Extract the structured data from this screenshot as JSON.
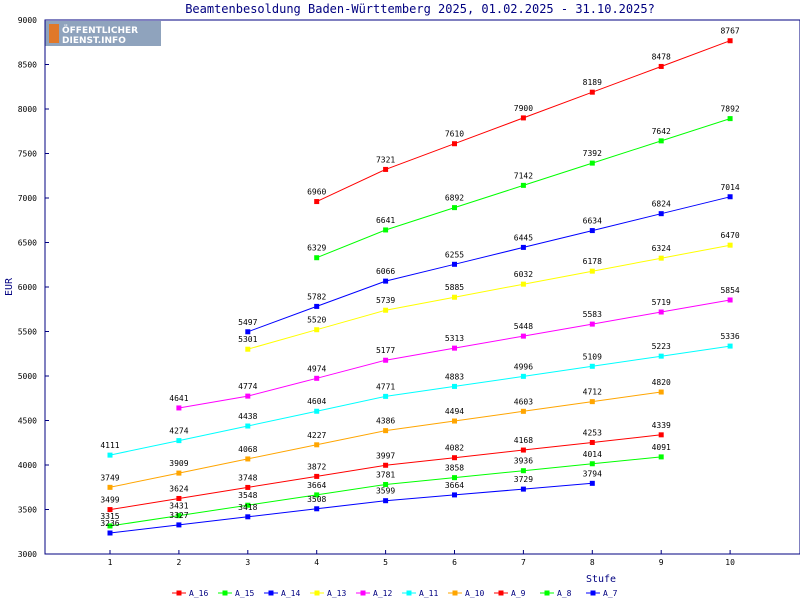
{
  "logo": {
    "line1": "ÖFFENTLICHER",
    "line2": "DIENST.INFO"
  },
  "chart_data": {
    "type": "line",
    "title": "Beamtenbesoldung Baden-Württemberg 2025, 01.02.2025 - 31.10.2025?",
    "xlabel": "Stufe",
    "ylabel": "EUR",
    "ylim": [
      3000,
      9000
    ],
    "yticks": [
      3000,
      3500,
      4000,
      4500,
      5000,
      5500,
      6000,
      6500,
      7000,
      7500,
      8000,
      8500,
      9000
    ],
    "x": [
      1,
      2,
      3,
      4,
      5,
      6,
      7,
      8,
      9,
      10
    ],
    "grid": false,
    "legend_position": "bottom",
    "series": [
      {
        "name": "A_16",
        "color": "#ff0000",
        "values": [
          null,
          null,
          null,
          6960,
          7321,
          7610,
          7900,
          8189,
          8478,
          8767
        ]
      },
      {
        "name": "A_15",
        "color": "#00ff00",
        "values": [
          null,
          null,
          null,
          6329,
          6641,
          6892,
          7142,
          7392,
          7642,
          7892
        ]
      },
      {
        "name": "A_14",
        "color": "#0000ff",
        "values": [
          null,
          null,
          5497,
          5782,
          6066,
          6255,
          6445,
          6634,
          6824,
          7014
        ]
      },
      {
        "name": "A_13",
        "color": "#ffff00",
        "values": [
          null,
          null,
          5301,
          5520,
          5739,
          5885,
          6032,
          6178,
          6324,
          6470
        ]
      },
      {
        "name": "A_12",
        "color": "#ff00ff",
        "values": [
          null,
          4641,
          4774,
          4974,
          5177,
          5313,
          5448,
          5583,
          5719,
          5854
        ]
      },
      {
        "name": "A_11",
        "color": "#00ffff",
        "values": [
          4111,
          4274,
          4438,
          4604,
          4771,
          4883,
          4996,
          5109,
          5223,
          5336
        ]
      },
      {
        "name": "A_10",
        "color": "#ffa500",
        "values": [
          3749,
          3909,
          4068,
          4227,
          4386,
          4494,
          4603,
          4712,
          4820,
          null
        ]
      },
      {
        "name": "A_9",
        "color": "#ff0000",
        "values": [
          3499,
          3624,
          3748,
          3872,
          3997,
          4082,
          4168,
          4253,
          4339,
          null
        ]
      },
      {
        "name": "A_8",
        "color": "#00ff00",
        "values": [
          3315,
          3431,
          3548,
          3664,
          3781,
          3858,
          3936,
          4014,
          4091,
          null
        ]
      },
      {
        "name": "A_7",
        "color": "#0000ff",
        "values": [
          3236,
          3327,
          3418,
          3508,
          3599,
          3664,
          3729,
          3794,
          null,
          null
        ]
      }
    ]
  }
}
